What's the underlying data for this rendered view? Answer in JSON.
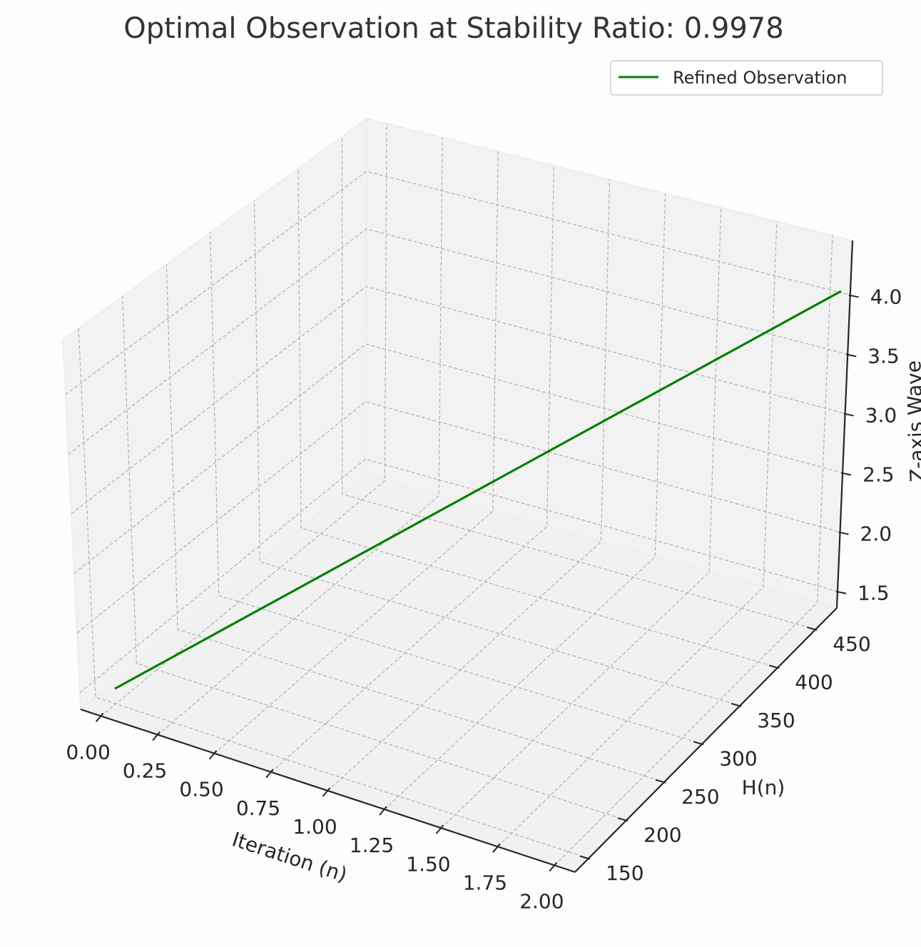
{
  "chart_data": {
    "type": "line",
    "projection": "3d",
    "title": "Optimal Observation at Stability Ratio: 0.9978",
    "xlabel": "Iteration (n)",
    "ylabel": "H(n)",
    "zlabel": "Z-axis Wave",
    "xlim": [
      -0.09,
      2.09
    ],
    "ylim": [
      132,
      478
    ],
    "zlim": [
      1.36,
      4.46
    ],
    "x_ticks": [
      "0.00",
      "0.25",
      "0.50",
      "0.75",
      "1.00",
      "1.25",
      "1.50",
      "1.75",
      "2.00"
    ],
    "y_ticks": [
      "150",
      "200",
      "250",
      "300",
      "350",
      "400",
      "450"
    ],
    "z_ticks": [
      "1.5",
      "2.0",
      "2.5",
      "3.0",
      "3.5",
      "4.0"
    ],
    "grid": true,
    "legend_position": "top-right",
    "series": [
      {
        "name": "Refined Observation",
        "color": "#008000",
        "x": [
          0,
          2
        ],
        "y": [
          148,
          462
        ],
        "z": [
          1.5,
          4.32
        ]
      }
    ]
  }
}
